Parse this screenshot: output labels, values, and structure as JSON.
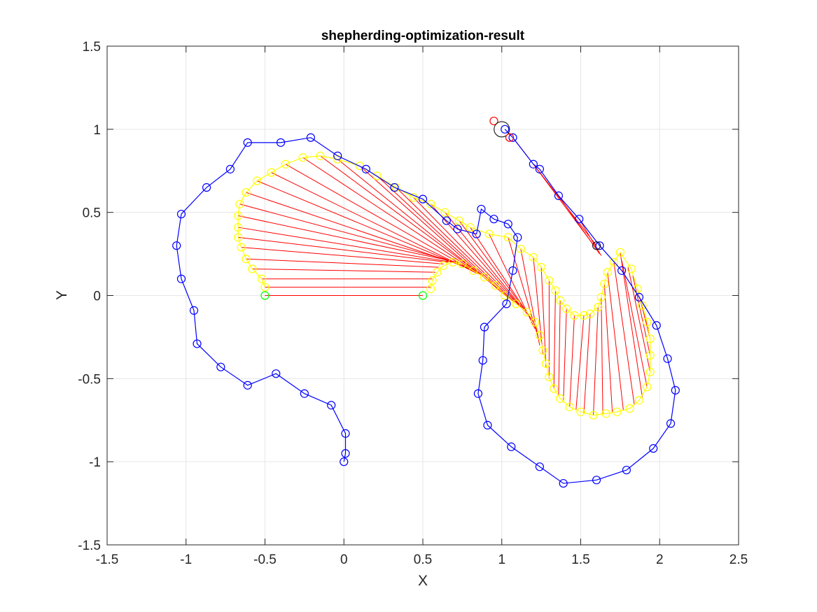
{
  "chart_data": {
    "type": "scatter",
    "title": "shepherding-optimization-result",
    "xlabel": "X",
    "ylabel": "Y",
    "xlim": [
      -1.5,
      2.5
    ],
    "ylim": [
      -1.5,
      1.5
    ],
    "x_ticks": [
      -1.5,
      -1,
      -0.5,
      0,
      0.5,
      1,
      1.5,
      2,
      2.5
    ],
    "y_ticks": [
      -1.5,
      -1,
      -0.5,
      0,
      0.5,
      1,
      1.5
    ],
    "x_tick_labels": [
      "-1.5",
      "-1",
      "-0.5",
      "0",
      "0.5",
      "1",
      "1.5",
      "2",
      "2.5"
    ],
    "y_tick_labels": [
      "-1.5",
      "-1",
      "-0.5",
      "0",
      "0.5",
      "1",
      "1.5"
    ],
    "grid": true,
    "colors": {
      "shepherd": "#0000ff",
      "sheep": "#ffff00",
      "link": "#ff0000",
      "start": "#00ff00",
      "goal_marker": "#ff0000",
      "goal_region": "#000000"
    },
    "shepherd_paths": [
      [
        [
          0,
          -1.0
        ],
        [
          0.01,
          -0.95
        ],
        [
          0.01,
          -0.83
        ],
        [
          -0.08,
          -0.66
        ],
        [
          -0.25,
          -0.59
        ],
        [
          -0.43,
          -0.47
        ],
        [
          -0.61,
          -0.54
        ],
        [
          -0.78,
          -0.43
        ],
        [
          -0.93,
          -0.29
        ],
        [
          -0.95,
          -0.09
        ],
        [
          -1.03,
          0.1
        ],
        [
          -1.06,
          0.3
        ],
        [
          -1.03,
          0.49
        ],
        [
          -0.87,
          0.65
        ],
        [
          -0.72,
          0.76
        ],
        [
          -0.61,
          0.92
        ],
        [
          -0.4,
          0.92
        ],
        [
          -0.21,
          0.95
        ],
        [
          -0.04,
          0.84
        ],
        [
          0.14,
          0.76
        ],
        [
          0.32,
          0.65
        ],
        [
          0.5,
          0.58
        ],
        [
          0.65,
          0.45
        ],
        [
          0.72,
          0.4
        ],
        [
          0.84,
          0.37
        ],
        [
          0.87,
          0.52
        ],
        [
          0.95,
          0.46
        ],
        [
          1.04,
          0.43
        ],
        [
          1.1,
          0.35
        ],
        [
          1.07,
          0.15
        ],
        [
          1.03,
          -0.05
        ],
        [
          0.89,
          -0.19
        ],
        [
          0.88,
          -0.39
        ],
        [
          0.85,
          -0.59
        ],
        [
          0.91,
          -0.78
        ],
        [
          1.06,
          -0.91
        ],
        [
          1.24,
          -1.03
        ],
        [
          1.39,
          -1.13
        ],
        [
          1.6,
          -1.11
        ],
        [
          1.79,
          -1.05
        ],
        [
          1.96,
          -0.92
        ],
        [
          2.07,
          -0.77
        ],
        [
          2.1,
          -0.57
        ],
        [
          2.05,
          -0.38
        ],
        [
          1.98,
          -0.18
        ],
        [
          1.87,
          -0.01
        ],
        [
          1.76,
          0.15
        ],
        [
          1.62,
          0.3
        ],
        [
          1.49,
          0.46
        ],
        [
          1.36,
          0.6
        ],
        [
          1.24,
          0.76
        ],
        [
          1.2,
          0.79
        ],
        [
          1.07,
          0.95
        ],
        [
          1.02,
          1.0
        ]
      ]
    ],
    "sheep_path": [
      [
        -0.5,
        0.05
      ],
      [
        -0.52,
        0.1
      ],
      [
        -0.58,
        0.16
      ],
      [
        -0.62,
        0.22
      ],
      [
        -0.65,
        0.29
      ],
      [
        -0.67,
        0.35
      ],
      [
        -0.67,
        0.41
      ],
      [
        -0.67,
        0.48
      ],
      [
        -0.66,
        0.55
      ],
      [
        -0.62,
        0.62
      ],
      [
        -0.55,
        0.69
      ],
      [
        -0.46,
        0.74
      ],
      [
        -0.37,
        0.79
      ],
      [
        -0.26,
        0.83
      ],
      [
        -0.15,
        0.84
      ],
      [
        -0.04,
        0.82
      ],
      [
        0.1,
        0.78
      ],
      [
        0.21,
        0.72
      ],
      [
        0.33,
        0.65
      ],
      [
        0.44,
        0.59
      ],
      [
        0.55,
        0.55
      ],
      [
        0.64,
        0.5
      ],
      [
        0.73,
        0.45
      ],
      [
        0.8,
        0.41
      ],
      [
        0.92,
        0.37
      ],
      [
        1.04,
        0.35
      ],
      [
        1.12,
        0.28
      ],
      [
        1.2,
        0.23
      ],
      [
        1.25,
        0.17
      ],
      [
        1.3,
        0.09
      ],
      [
        1.34,
        0.03
      ],
      [
        1.37,
        -0.03
      ],
      [
        1.41,
        -0.08
      ],
      [
        1.46,
        -0.12
      ],
      [
        1.52,
        -0.12
      ],
      [
        1.56,
        -0.11
      ],
      [
        1.61,
        -0.07
      ],
      [
        1.63,
        -0.01
      ],
      [
        1.65,
        0.07
      ],
      [
        1.67,
        0.14
      ],
      [
        1.71,
        0.2
      ],
      [
        1.75,
        0.26
      ],
      [
        1.82,
        0.16
      ],
      [
        1.86,
        0.04
      ],
      [
        1.89,
        -0.06
      ],
      [
        1.92,
        -0.16
      ],
      [
        1.94,
        -0.26
      ],
      [
        1.94,
        -0.36
      ],
      [
        1.94,
        -0.46
      ],
      [
        1.92,
        -0.55
      ],
      [
        1.87,
        -0.63
      ],
      [
        1.81,
        -0.68
      ],
      [
        1.73,
        -0.7
      ],
      [
        1.66,
        -0.71
      ],
      [
        1.58,
        -0.72
      ],
      [
        1.5,
        -0.7
      ],
      [
        1.43,
        -0.67
      ],
      [
        1.37,
        -0.62
      ],
      [
        1.33,
        -0.56
      ],
      [
        1.3,
        -0.49
      ],
      [
        1.28,
        -0.41
      ],
      [
        1.26,
        -0.33
      ],
      [
        1.24,
        -0.24
      ],
      [
        1.21,
        -0.16
      ],
      [
        1.16,
        -0.1
      ],
      [
        1.09,
        -0.05
      ],
      [
        1.02,
        0.0
      ],
      [
        0.96,
        0.06
      ],
      [
        0.89,
        0.11
      ],
      [
        0.82,
        0.15
      ],
      [
        0.75,
        0.19
      ],
      [
        0.69,
        0.2
      ],
      [
        0.63,
        0.18
      ],
      [
        0.59,
        0.14
      ],
      [
        0.56,
        0.09
      ],
      [
        0.55,
        0.04
      ]
    ],
    "start_points": [
      [
        -0.5,
        0
      ],
      [
        0.5,
        0
      ]
    ],
    "goal_marker": [
      0.95,
      1.05
    ],
    "goal_region": [
      1.0,
      1.0
    ],
    "links": [
      [
        [
          -0.5,
          0.0
        ],
        [
          0.5,
          0.0
        ]
      ],
      [
        [
          -0.5,
          0.05
        ],
        [
          0.55,
          0.05
        ]
      ],
      [
        [
          -0.52,
          0.1
        ],
        [
          0.56,
          0.1
        ]
      ],
      [
        [
          -0.58,
          0.16
        ],
        [
          0.58,
          0.14
        ]
      ],
      [
        [
          -0.62,
          0.22
        ],
        [
          0.6,
          0.17
        ]
      ],
      [
        [
          -0.65,
          0.29
        ],
        [
          0.63,
          0.19
        ]
      ],
      [
        [
          -0.67,
          0.35
        ],
        [
          0.66,
          0.2
        ]
      ],
      [
        [
          -0.67,
          0.41
        ],
        [
          0.69,
          0.2
        ]
      ],
      [
        [
          -0.67,
          0.48
        ],
        [
          0.72,
          0.2
        ]
      ],
      [
        [
          -0.66,
          0.55
        ],
        [
          0.75,
          0.19
        ]
      ],
      [
        [
          -0.62,
          0.62
        ],
        [
          0.78,
          0.17
        ]
      ],
      [
        [
          -0.55,
          0.69
        ],
        [
          0.82,
          0.15
        ]
      ],
      [
        [
          -0.46,
          0.74
        ],
        [
          0.85,
          0.13
        ]
      ],
      [
        [
          -0.37,
          0.79
        ],
        [
          0.89,
          0.11
        ]
      ],
      [
        [
          -0.26,
          0.83
        ],
        [
          0.92,
          0.09
        ]
      ],
      [
        [
          -0.15,
          0.84
        ],
        [
          0.96,
          0.06
        ]
      ],
      [
        [
          -0.04,
          0.82
        ],
        [
          0.99,
          0.03
        ]
      ],
      [
        [
          0.1,
          0.78
        ],
        [
          1.02,
          0.0
        ]
      ],
      [
        [
          0.21,
          0.72
        ],
        [
          1.05,
          -0.02
        ]
      ],
      [
        [
          0.33,
          0.65
        ],
        [
          1.08,
          -0.04
        ]
      ],
      [
        [
          0.44,
          0.59
        ],
        [
          1.11,
          -0.06
        ]
      ],
      [
        [
          0.55,
          0.55
        ],
        [
          1.14,
          -0.09
        ]
      ],
      [
        [
          0.64,
          0.5
        ],
        [
          1.16,
          -0.11
        ]
      ],
      [
        [
          0.73,
          0.45
        ],
        [
          1.18,
          -0.13
        ]
      ],
      [
        [
          0.8,
          0.41
        ],
        [
          1.2,
          -0.16
        ]
      ],
      [
        [
          0.92,
          0.37
        ],
        [
          1.21,
          -0.2
        ]
      ],
      [
        [
          1.04,
          0.35
        ],
        [
          1.23,
          -0.25
        ]
      ],
      [
        [
          1.12,
          0.28
        ],
        [
          1.24,
          -0.3
        ]
      ],
      [
        [
          1.2,
          0.23
        ],
        [
          1.26,
          -0.35
        ]
      ],
      [
        [
          1.25,
          0.17
        ],
        [
          1.28,
          -0.43
        ]
      ],
      [
        [
          1.3,
          0.09
        ],
        [
          1.3,
          -0.5
        ]
      ],
      [
        [
          1.34,
          0.03
        ],
        [
          1.33,
          -0.56
        ]
      ],
      [
        [
          1.37,
          -0.03
        ],
        [
          1.36,
          -0.6
        ]
      ],
      [
        [
          1.41,
          -0.08
        ],
        [
          1.39,
          -0.64
        ]
      ],
      [
        [
          1.46,
          -0.12
        ],
        [
          1.43,
          -0.67
        ]
      ],
      [
        [
          1.52,
          -0.12
        ],
        [
          1.47,
          -0.69
        ]
      ],
      [
        [
          1.56,
          -0.11
        ],
        [
          1.52,
          -0.71
        ]
      ],
      [
        [
          1.61,
          -0.07
        ],
        [
          1.58,
          -0.72
        ]
      ],
      [
        [
          1.63,
          -0.01
        ],
        [
          1.64,
          -0.71
        ]
      ],
      [
        [
          1.65,
          0.07
        ],
        [
          1.7,
          -0.7
        ]
      ],
      [
        [
          1.67,
          0.14
        ],
        [
          1.77,
          -0.69
        ]
      ],
      [
        [
          1.71,
          0.2
        ],
        [
          1.84,
          -0.66
        ]
      ],
      [
        [
          1.75,
          0.26
        ],
        [
          1.89,
          -0.61
        ]
      ],
      [
        [
          1.76,
          0.21
        ],
        [
          1.92,
          -0.55
        ]
      ],
      [
        [
          1.8,
          0.17
        ],
        [
          1.94,
          -0.46
        ]
      ],
      [
        [
          1.83,
          0.12
        ],
        [
          1.94,
          -0.36
        ]
      ],
      [
        [
          1.86,
          0.04
        ],
        [
          1.94,
          -0.26
        ]
      ],
      [
        [
          1.89,
          -0.06
        ],
        [
          1.93,
          -0.2
        ]
      ],
      [
        [
          1.07,
          0.95
        ],
        [
          1.6,
          0.3
        ]
      ],
      [
        [
          1.2,
          0.79
        ],
        [
          1.6,
          0.28
        ]
      ],
      [
        [
          1.36,
          0.6
        ],
        [
          1.62,
          0.25
        ]
      ],
      [
        [
          1.49,
          0.46
        ],
        [
          1.63,
          0.24
        ]
      ]
    ]
  }
}
